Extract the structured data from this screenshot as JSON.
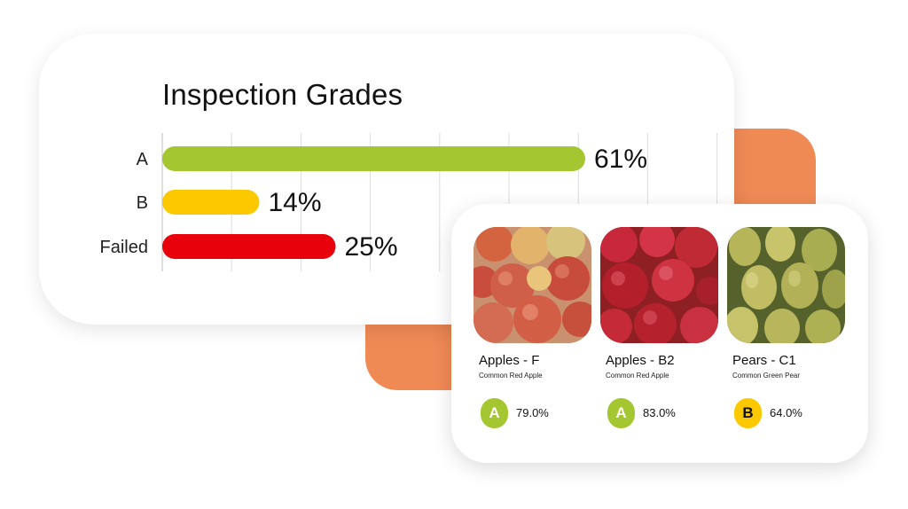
{
  "chart_data": {
    "type": "bar",
    "orientation": "horizontal",
    "title": "Inspection Grades",
    "categories": [
      "A",
      "B",
      "Failed"
    ],
    "values": [
      61,
      14,
      25
    ],
    "value_labels": [
      "61%",
      "14%",
      "25%"
    ],
    "colors": [
      "#a4c630",
      "#fcc800",
      "#e8000b"
    ],
    "xlim": [
      0,
      100
    ],
    "grid": "vertical",
    "xlabel": "",
    "ylabel": ""
  },
  "products": [
    {
      "name": "Apples - F",
      "variety": "Common Red Apple",
      "grade": "A",
      "score": "79.0%",
      "grade_color": "#a4c630",
      "photo": "red-apples"
    },
    {
      "name": "Apples - B2",
      "variety": "Common Red Apple",
      "grade": "A",
      "score": "83.0%",
      "grade_color": "#a4c630",
      "photo": "dark-red-apples"
    },
    {
      "name": "Pears - C1",
      "variety": "Common Green Pear",
      "grade": "B",
      "score": "64.0%",
      "grade_color": "#fcc800",
      "photo": "green-pears"
    }
  ],
  "colors": {
    "accent_orange": "#f08a55",
    "card_bg": "#ffffff"
  }
}
